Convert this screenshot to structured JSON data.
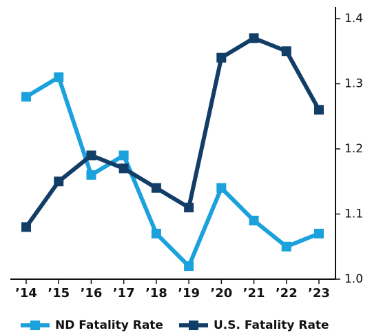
{
  "chart_data": {
    "type": "line",
    "categories": [
      "’14",
      "’15",
      "’16",
      "’17",
      "’18",
      "’19",
      "’20",
      "’21",
      "’22",
      "’23"
    ],
    "series": [
      {
        "name": "ND Fatality Rate",
        "color": "#1ba1dc",
        "values": [
          1.28,
          1.31,
          1.16,
          1.19,
          1.07,
          1.02,
          1.14,
          1.09,
          1.05,
          1.07
        ]
      },
      {
        "name": "U.S. Fatality Rate",
        "color": "#123d66",
        "values": [
          1.08,
          1.15,
          1.19,
          1.17,
          1.14,
          1.11,
          1.34,
          1.37,
          1.35,
          1.26
        ]
      }
    ],
    "ylim": [
      1,
      1.4
    ],
    "yticks": [
      {
        "value": 1,
        "label": "1.0"
      },
      1.1,
      1.2,
      1.3,
      1.4
    ],
    "y_axis_side": "right",
    "legend": "bottom"
  }
}
